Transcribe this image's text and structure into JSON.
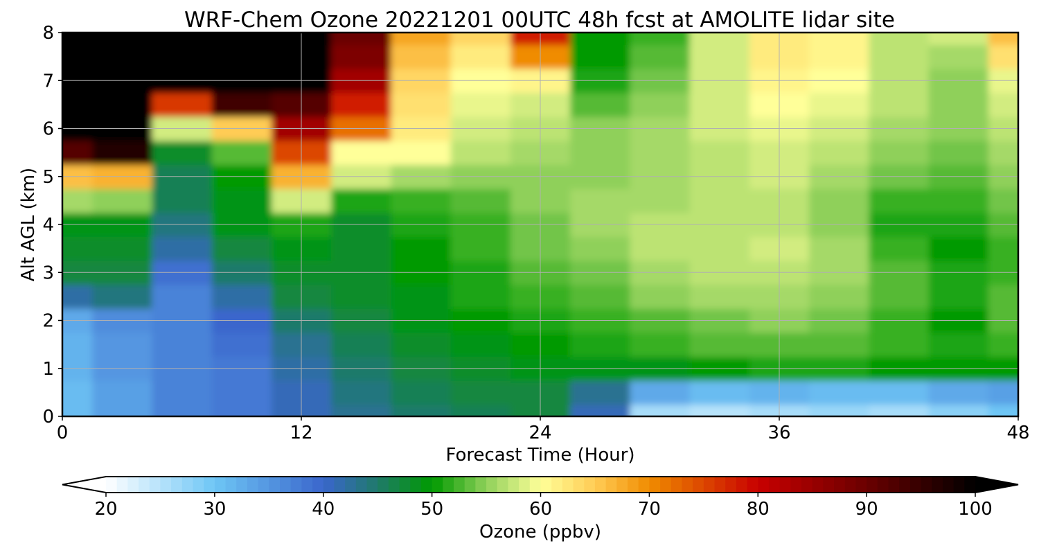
{
  "chart_data": {
    "type": "heatmap",
    "title": "WRF-Chem Ozone  20221201 00UTC 48h fcst at AMOLITE lidar site",
    "xlabel": "Forecast Time (Hour)",
    "ylabel": "Alt AGL (km)",
    "xlim": [
      0,
      48
    ],
    "ylim": [
      0,
      8
    ],
    "x_ticks": [
      0,
      12,
      24,
      36,
      48
    ],
    "y_ticks": [
      0,
      1,
      2,
      3,
      4,
      5,
      6,
      7,
      8
    ],
    "grid": true,
    "colorbar": {
      "label": "Ozone  (ppbv)",
      "min": 20,
      "max": 100,
      "ticks": [
        20,
        30,
        40,
        50,
        60,
        70,
        80,
        90,
        100
      ],
      "extend": "both",
      "color_stops": [
        {
          "v": 20,
          "c": "#ffffff"
        },
        {
          "v": 30,
          "c": "#6ec6f5"
        },
        {
          "v": 40,
          "c": "#3a66cc"
        },
        {
          "v": 45,
          "c": "#1f7a6a"
        },
        {
          "v": 50,
          "c": "#009a00"
        },
        {
          "v": 55,
          "c": "#8fd05a"
        },
        {
          "v": 60,
          "c": "#ffff99"
        },
        {
          "v": 65,
          "c": "#ffcc55"
        },
        {
          "v": 70,
          "c": "#f08c00"
        },
        {
          "v": 80,
          "c": "#c80000"
        },
        {
          "v": 90,
          "c": "#6a0000"
        },
        {
          "v": 100,
          "c": "#000000"
        }
      ]
    },
    "x": [
      0,
      3,
      6,
      9,
      12,
      15,
      18,
      21,
      24,
      27,
      30,
      33,
      36,
      39,
      42,
      45,
      48
    ],
    "y": [
      0,
      0.5,
      1,
      1.5,
      2,
      2.5,
      3,
      3.5,
      4,
      4.5,
      5,
      5.5,
      6,
      6.5,
      7,
      7.5,
      8
    ],
    "z": [
      [
        31,
        34,
        37,
        38,
        41,
        43,
        45,
        46,
        47,
        41,
        26,
        25,
        26,
        27,
        26,
        28,
        30
      ],
      [
        31,
        34,
        37,
        38,
        41,
        44,
        46,
        47,
        47,
        43,
        33,
        31,
        32,
        31,
        31,
        33,
        34
      ],
      [
        32,
        35,
        37,
        38,
        42,
        45,
        47,
        48,
        49,
        49,
        49,
        50,
        51,
        51,
        50,
        50,
        50
      ],
      [
        32,
        35,
        37,
        39,
        43,
        46,
        48,
        49,
        50,
        51,
        52,
        53,
        53,
        53,
        52,
        51,
        52
      ],
      [
        33,
        36,
        37,
        40,
        45,
        47,
        49,
        50,
        51,
        52,
        53,
        54,
        55,
        54,
        52,
        50,
        53
      ],
      [
        42,
        44,
        37,
        42,
        47,
        48,
        49,
        51,
        52,
        53,
        55,
        56,
        56,
        55,
        53,
        51,
        53
      ],
      [
        47,
        47,
        39,
        45,
        48,
        48,
        50,
        51,
        53,
        54,
        56,
        57,
        57,
        56,
        53,
        51,
        52
      ],
      [
        48,
        48,
        42,
        47,
        49,
        48,
        50,
        52,
        54,
        55,
        57,
        57,
        58,
        56,
        52,
        50,
        52
      ],
      [
        49,
        49,
        44,
        49,
        51,
        48,
        51,
        52,
        54,
        56,
        57,
        57,
        57,
        55,
        51,
        51,
        53
      ],
      [
        56,
        55,
        46,
        49,
        58,
        51,
        52,
        53,
        55,
        56,
        56,
        57,
        57,
        55,
        52,
        52,
        54
      ],
      [
        66,
        67,
        46,
        50,
        67,
        58,
        56,
        55,
        55,
        55,
        56,
        57,
        58,
        56,
        54,
        53,
        55
      ],
      [
        92,
        97,
        48,
        53,
        75,
        60,
        60,
        57,
        56,
        55,
        56,
        57,
        58,
        57,
        55,
        54,
        56
      ],
      [
        100,
        100,
        58,
        65,
        84,
        72,
        62,
        58,
        57,
        55,
        56,
        58,
        59,
        58,
        56,
        55,
        57
      ],
      [
        100,
        100,
        76,
        94,
        92,
        78,
        63,
        59,
        58,
        53,
        55,
        58,
        60,
        59,
        57,
        55,
        58
      ],
      [
        100,
        100,
        100,
        100,
        100,
        84,
        64,
        60,
        61,
        51,
        54,
        58,
        61,
        60,
        57,
        55,
        59
      ],
      [
        100,
        100,
        100,
        100,
        100,
        88,
        66,
        62,
        70,
        50,
        53,
        58,
        62,
        61,
        57,
        56,
        63
      ],
      [
        100,
        100,
        100,
        100,
        100,
        90,
        68,
        64,
        78,
        50,
        52,
        58,
        62,
        61,
        57,
        58,
        66
      ]
    ]
  }
}
